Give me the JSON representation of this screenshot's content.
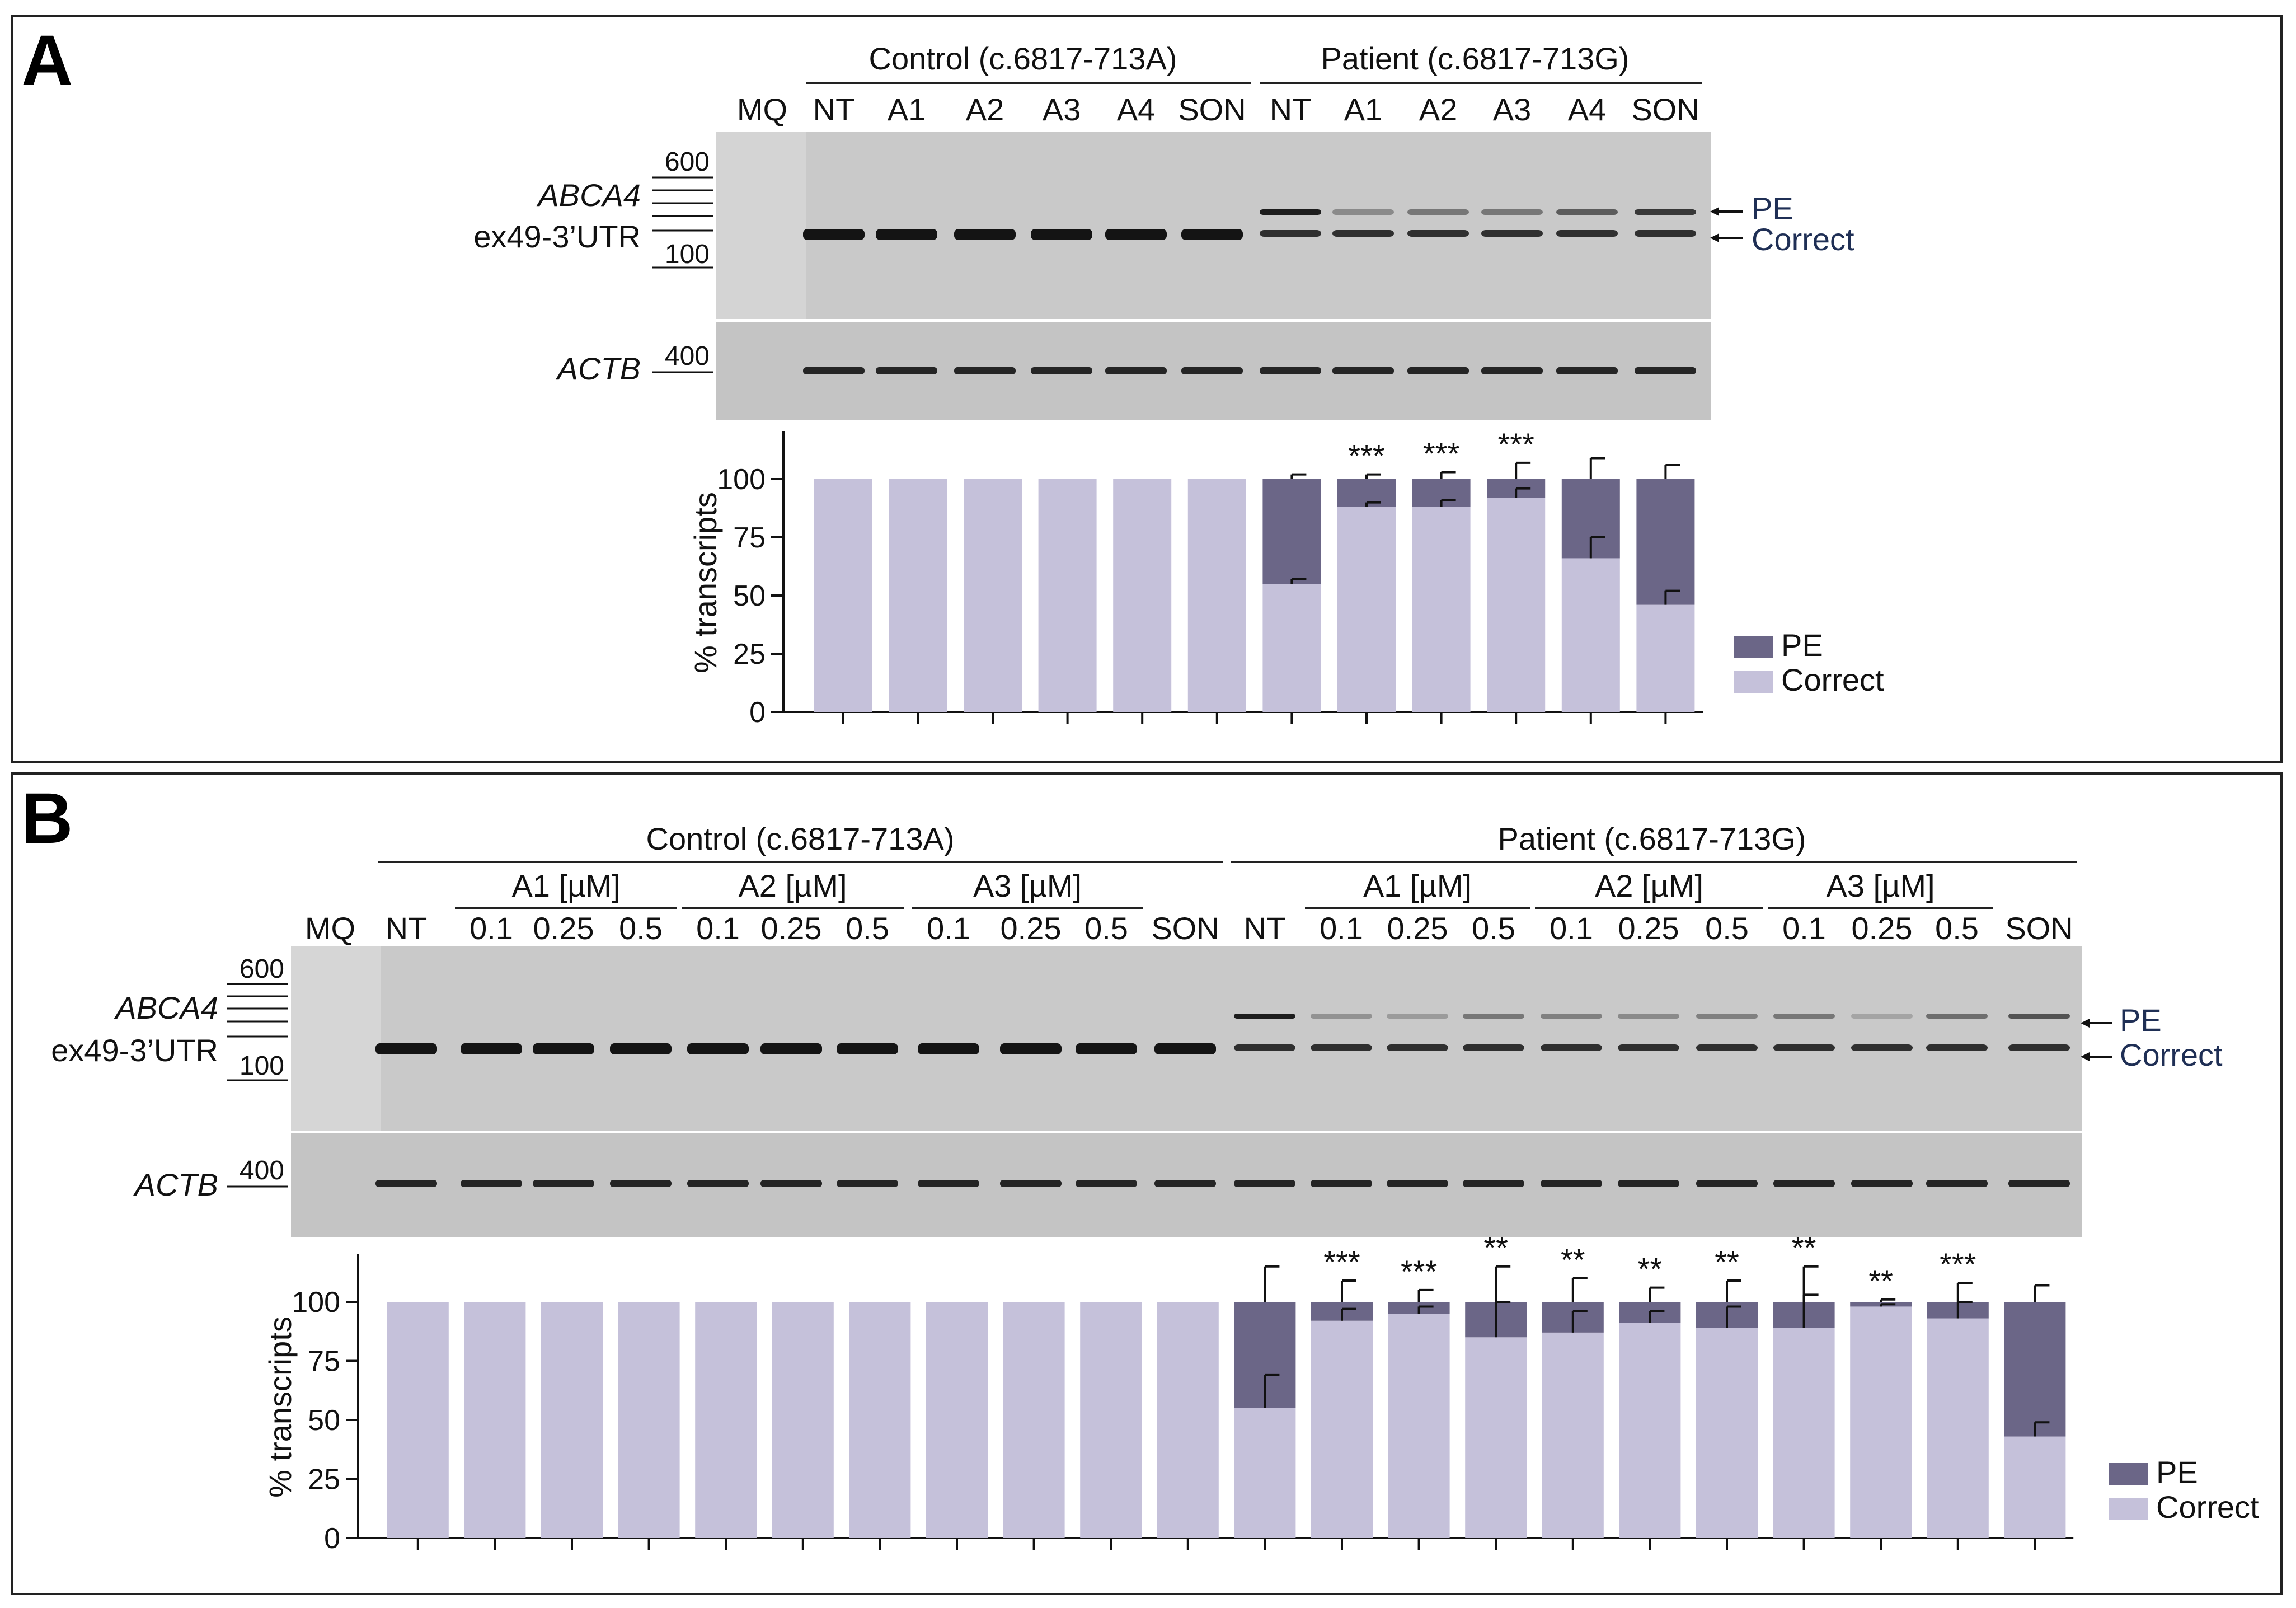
{
  "colors": {
    "pe": "#6b6687",
    "correct": "#c5c1da",
    "gel_bg": "#c9c9c9",
    "band": "#141414",
    "axis": "#111111",
    "label_blue": "#1f2f55"
  },
  "panel_a": {
    "letter": "A",
    "group_control": "Control (c.6817-713A)",
    "group_patient": "Patient (c.6817-713G)",
    "lanes": [
      "MQ",
      "NT",
      "A1",
      "A2",
      "A3",
      "A4",
      "SON",
      "NT",
      "A1",
      "A2",
      "A3",
      "A4",
      "SON"
    ],
    "marker_600": "600",
    "marker_100": "100",
    "marker_400": "400",
    "gene_abca4": "ABCA4",
    "gene_abca4_region": "ex49-3’UTR",
    "gene_actb": "ACTB",
    "arrow_pe": "PE",
    "arrow_correct": "Correct"
  },
  "panel_b": {
    "letter": "B",
    "group_control": "Control (c.6817-713A)",
    "group_patient": "Patient (c.6817-713G)",
    "sub_control": [
      "A1 [µM]",
      "A2 [µM]",
      "A3 [µM]"
    ],
    "sub_patient": [
      "A1 [µM]",
      "A2 [µM]",
      "A3 [µM]"
    ],
    "lanes": [
      "MQ",
      "NT",
      "0.1",
      "0.25",
      "0.5",
      "0.1",
      "0.25",
      "0.5",
      "0.1",
      "0.25",
      "0.5",
      "SON",
      "NT",
      "0.1",
      "0.25",
      "0.5",
      "0.1",
      "0.25",
      "0.5",
      "0.1",
      "0.25",
      "0.5",
      "SON"
    ],
    "marker_600": "600",
    "marker_100": "100",
    "marker_400": "400",
    "gene_abca4": "ABCA4",
    "gene_abca4_region": "ex49-3’UTR",
    "gene_actb": "ACTB",
    "arrow_pe": "PE",
    "arrow_correct": "Correct"
  },
  "chart_data": [
    {
      "type": "bar",
      "stacked": true,
      "ylabel": "% transcripts",
      "ylim": [
        0,
        100
      ],
      "yticks": [
        0,
        25,
        50,
        75,
        100
      ],
      "legend": [
        "PE",
        "Correct"
      ],
      "legend_position": "right",
      "series": [
        {
          "name": "Correct",
          "values": [
            100,
            100,
            100,
            100,
            100,
            100,
            55,
            88,
            88,
            92,
            66,
            46
          ],
          "errors": [
            0,
            0,
            0,
            0,
            0,
            0,
            2,
            2,
            3,
            4,
            9,
            6
          ]
        },
        {
          "name": "PE",
          "values": [
            0,
            0,
            0,
            0,
            0,
            0,
            45,
            12,
            12,
            8,
            34,
            54
          ],
          "errors": [
            0,
            0,
            0,
            0,
            0,
            0,
            2,
            2,
            3,
            7,
            9,
            6
          ]
        }
      ],
      "significance": [
        "",
        "",
        "",
        "",
        "",
        "",
        "",
        "***",
        "***",
        "***",
        "",
        ""
      ]
    },
    {
      "type": "bar",
      "stacked": true,
      "ylabel": "% transcripts",
      "ylim": [
        0,
        100
      ],
      "yticks": [
        0,
        25,
        50,
        75,
        100
      ],
      "legend": [
        "PE",
        "Correct"
      ],
      "legend_position": "right",
      "series": [
        {
          "name": "Correct",
          "values": [
            100,
            100,
            100,
            100,
            100,
            100,
            100,
            100,
            100,
            100,
            100,
            55,
            92,
            95,
            85,
            87,
            91,
            89,
            89,
            98,
            93,
            43
          ],
          "errors": [
            0,
            0,
            0,
            0,
            0,
            0,
            0,
            0,
            0,
            0,
            0,
            14,
            5,
            3,
            15,
            9,
            5,
            9,
            14,
            1,
            7,
            6
          ]
        },
        {
          "name": "PE",
          "values": [
            0,
            0,
            0,
            0,
            0,
            0,
            0,
            0,
            0,
            0,
            0,
            45,
            8,
            5,
            15,
            13,
            9,
            11,
            11,
            2,
            7,
            57
          ],
          "errors": [
            0,
            0,
            0,
            0,
            0,
            0,
            0,
            0,
            0,
            0,
            0,
            15,
            9,
            5,
            15,
            10,
            6,
            9,
            15,
            1,
            8,
            7
          ]
        }
      ],
      "significance": [
        "",
        "",
        "",
        "",
        "",
        "",
        "",
        "",
        "",
        "",
        "",
        "",
        "***",
        "***",
        "**",
        "**",
        "**",
        "**",
        "**",
        "**",
        "***",
        ""
      ]
    }
  ]
}
